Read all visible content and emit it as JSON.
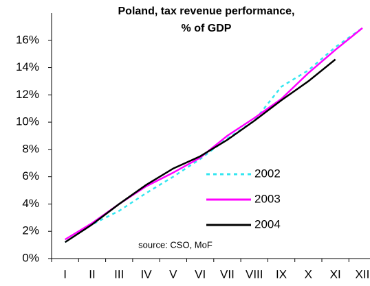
{
  "chart_data": {
    "type": "line",
    "title": [
      "Poland, tax revenue performance,",
      "% of GDP"
    ],
    "annotation": "source: CSO, MoF",
    "categories": [
      "I",
      "II",
      "III",
      "IV",
      "V",
      "VI",
      "VII",
      "VIII",
      "IX",
      "X",
      "XI",
      "XII"
    ],
    "series": [
      {
        "name": "2002",
        "color": "#33e6f0",
        "dashed": true,
        "values": [
          1.2,
          2.5,
          3.5,
          4.8,
          6.0,
          7.3,
          8.8,
          10.1,
          12.6,
          13.8,
          15.5,
          16.9
        ]
      },
      {
        "name": "2003",
        "color": "#ff00ff",
        "dashed": false,
        "values": [
          1.4,
          2.6,
          4.0,
          5.3,
          6.3,
          7.4,
          9.0,
          10.3,
          11.7,
          13.6,
          15.3,
          16.9
        ]
      },
      {
        "name": "2004",
        "color": "#000000",
        "dashed": false,
        "values": [
          1.2,
          2.5,
          4.0,
          5.4,
          6.6,
          7.5,
          8.7,
          10.1,
          11.6,
          13.0,
          14.6,
          null
        ]
      }
    ],
    "ylim": [
      0,
      18
    ],
    "yticks": [
      {
        "value": 0,
        "label": "0%"
      },
      {
        "value": 2,
        "label": "2%"
      },
      {
        "value": 4,
        "label": "4%"
      },
      {
        "value": 6,
        "label": "6%"
      },
      {
        "value": 8,
        "label": "8%"
      },
      {
        "value": 10,
        "label": "10%"
      },
      {
        "value": 12,
        "label": "12%"
      },
      {
        "value": 14,
        "label": "14%"
      },
      {
        "value": 16,
        "label": "16%"
      }
    ],
    "grid": false
  }
}
